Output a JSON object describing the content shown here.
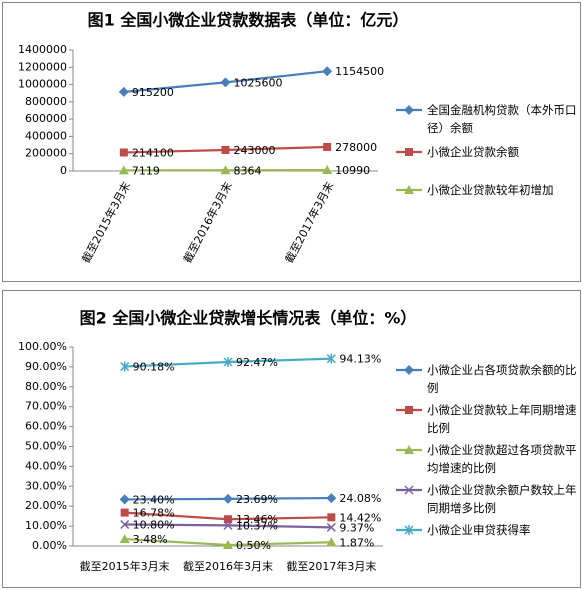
{
  "chart_data": [
    {
      "type": "line",
      "title": "图1  全国小微企业贷款数据表（单位：亿元）",
      "categories": [
        "截至2015年3月末",
        "截至2016年3月末",
        "截至2017年3月末"
      ],
      "ylim": [
        0,
        1400000
      ],
      "yticks": [
        0,
        200000,
        400000,
        600000,
        800000,
        1000000,
        1200000,
        1400000
      ],
      "grid": false,
      "legend": "right",
      "series": [
        {
          "name": "全国金融机构贷款（本外币口径）余额",
          "color": "#4a7ebb",
          "marker": "diamond",
          "values": [
            915200,
            1025600,
            1154500
          ]
        },
        {
          "name": "小微企业贷款余额",
          "color": "#be4b48",
          "marker": "square",
          "values": [
            214100,
            243000,
            278000
          ]
        },
        {
          "name": "小微企业贷款较年初增加",
          "color": "#98b954",
          "marker": "triangle",
          "values": [
            7119,
            8364,
            10990
          ]
        }
      ]
    },
    {
      "type": "line",
      "title": "图2  全国小微企业贷款增长情况表（单位：%）",
      "categories": [
        "截至2015年3月末",
        "截至2016年3月末",
        "截至2017年3月末"
      ],
      "ylim": [
        0,
        100
      ],
      "yticks": [
        {
          "value": 0,
          "label": "0.00%"
        },
        {
          "value": 10,
          "label": "10.00%"
        },
        {
          "value": 20,
          "label": "20.00%"
        },
        {
          "value": 30,
          "label": "30.00%"
        },
        {
          "value": 40,
          "label": "40.00%"
        },
        {
          "value": 50,
          "label": "50.00%"
        },
        {
          "value": 60,
          "label": "60.00%"
        },
        {
          "value": 70,
          "label": "70.00%"
        },
        {
          "value": 80,
          "label": "80.00%"
        },
        {
          "value": 90,
          "label": "90.00%"
        },
        {
          "value": 100,
          "label": "100.00%"
        }
      ],
      "grid": false,
      "legend": "right",
      "series": [
        {
          "name": "小微企业占各项贷款余额的比例",
          "color": "#4a7ebb",
          "marker": "diamond",
          "values": [
            23.4,
            23.69,
            24.08
          ],
          "value_labels": [
            "23.40%",
            "23.69%",
            "24.08%"
          ]
        },
        {
          "name": "小微企业贷款较上年同期增速比例",
          "color": "#be4b48",
          "marker": "square",
          "values": [
            16.78,
            13.46,
            14.42
          ],
          "value_labels": [
            "16.78%",
            "13.46%",
            "14.42%"
          ]
        },
        {
          "name": "小微企业贷款超过各项贷款平均增速的比例",
          "color": "#98b954",
          "marker": "triangle",
          "values": [
            3.48,
            0.5,
            1.87
          ],
          "value_labels": [
            "3.48%",
            "0.50%",
            "1.87%"
          ]
        },
        {
          "name": "小微企业贷款余额户数较上年同期增多比例",
          "color": "#7d60a0",
          "marker": "x",
          "values": [
            10.8,
            10.37,
            9.37
          ],
          "value_labels": [
            "10.80%",
            "10.37%",
            "9.37%"
          ]
        },
        {
          "name": "小微企业申贷获得率",
          "color": "#46aac5",
          "marker": "star",
          "values": [
            90.18,
            92.47,
            94.13
          ],
          "value_labels": [
            "90.18%",
            "92.47%",
            "94.13%"
          ]
        }
      ]
    }
  ]
}
